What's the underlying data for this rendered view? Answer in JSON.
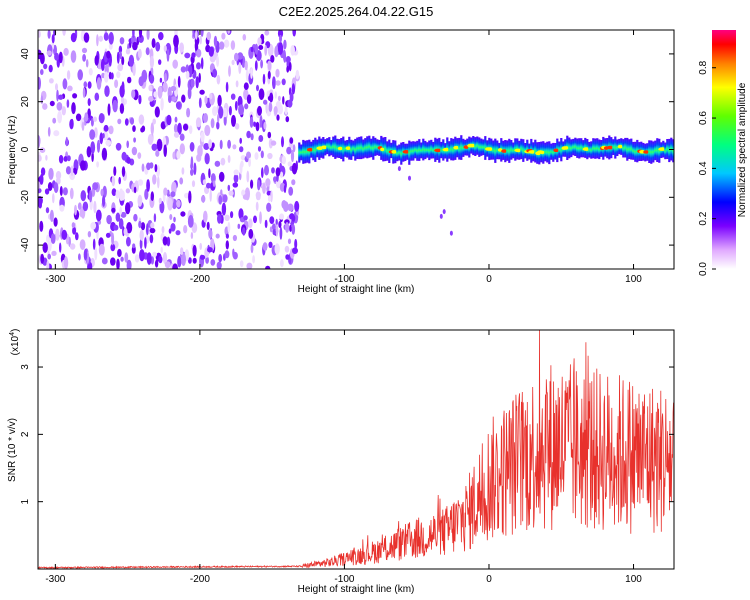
{
  "title": "C2E2.2025.264.04.22.G15",
  "colorbar": {
    "label": "Normalized spectral amplitude",
    "range": [
      0,
      0.95
    ],
    "ticks": [
      "0.0",
      "0.2",
      "0.4",
      "0.6",
      "0.8"
    ],
    "tick_values": [
      0.0,
      0.2,
      0.4,
      0.6,
      0.8
    ]
  },
  "chart_data": [
    {
      "type": "heatmap",
      "name": "spectrogram",
      "xlabel": "Height of straight line (km)",
      "ylabel": "Frequency (Hz)",
      "xlim": [
        -312,
        128
      ],
      "ylim": [
        -50,
        50
      ],
      "xticks": [
        -300,
        -200,
        -100,
        0,
        100
      ],
      "xtick_labels": [
        "-300",
        "-200",
        "-100",
        "0",
        "100"
      ],
      "yticks": [
        -40,
        -20,
        0,
        20,
        40
      ],
      "ytick_labels": [
        "-40",
        "-20",
        "0",
        "20",
        "40"
      ],
      "noise_region_x": [
        -312,
        -132
      ],
      "signal_region_x": [
        -132,
        128
      ],
      "signal_center_freq_hz": 0,
      "signal_bandwidth_hz": 8
    },
    {
      "type": "line",
      "name": "snr",
      "xlabel": "Height of straight line (km)",
      "ylabel": "SNR (10 * v/v)",
      "yscale_label": "(x10",
      "yscale_exponent": "4",
      "yscale_suffix": ")",
      "xlim": [
        -312,
        128
      ],
      "ylim": [
        0,
        3.55
      ],
      "xticks": [
        -300,
        -200,
        -100,
        0,
        100
      ],
      "xtick_labels": [
        "-300",
        "-200",
        "-100",
        "0",
        "100"
      ],
      "yticks": [
        1,
        2,
        3
      ],
      "ytick_labels": [
        "1",
        "2",
        "3"
      ],
      "color": "#e8312c",
      "envelope_x": [
        -312,
        -130,
        -110,
        -80,
        -50,
        -30,
        -15,
        0,
        20,
        40,
        60,
        80,
        100,
        128
      ],
      "envelope_y": [
        0.02,
        0.04,
        0.1,
        0.25,
        0.45,
        0.55,
        0.8,
        1.3,
        1.6,
        1.85,
        1.8,
        1.75,
        1.7,
        1.6
      ]
    }
  ]
}
